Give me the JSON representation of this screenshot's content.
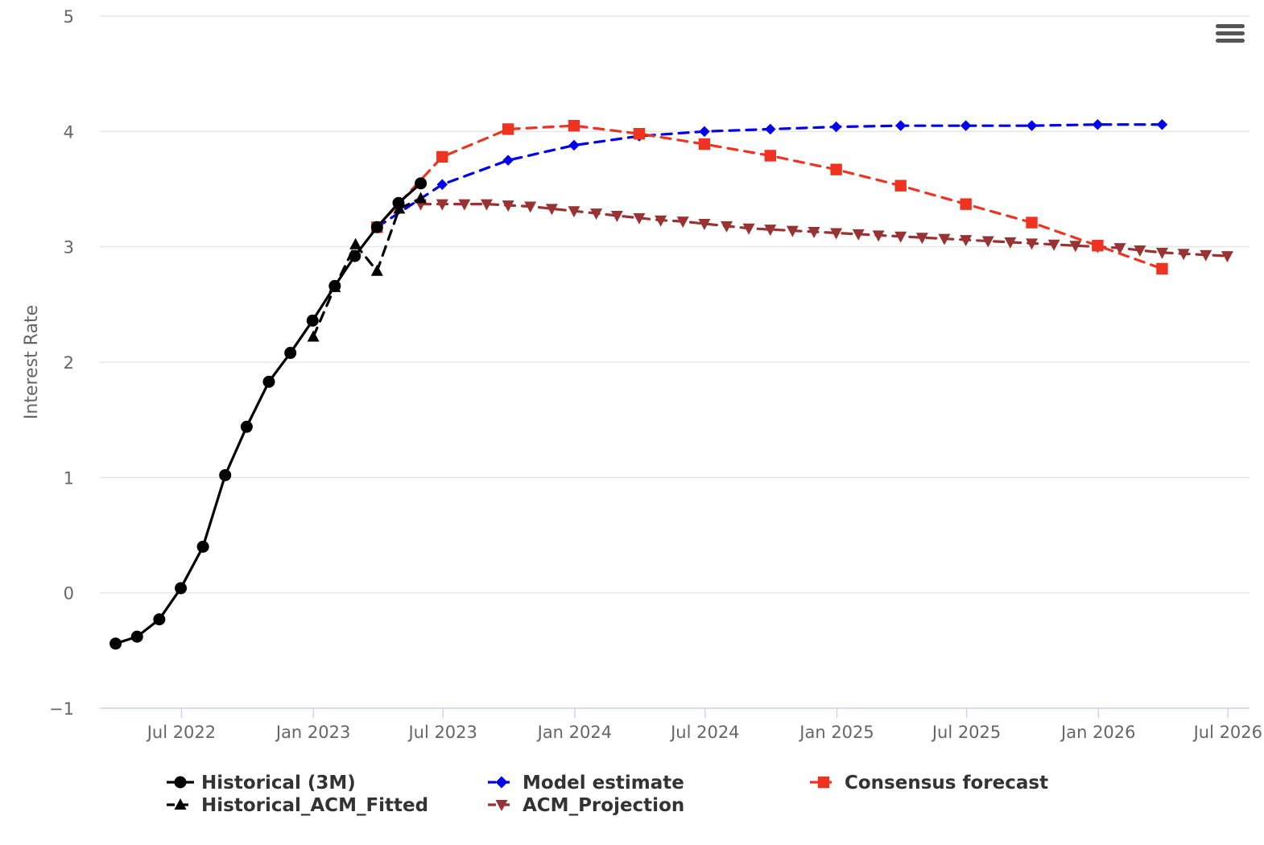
{
  "chart_data": {
    "type": "line",
    "title": "",
    "xlabel": "",
    "ylabel": "Interest Rate",
    "ylim": [
      -1,
      5
    ],
    "yticks": [
      -1,
      0,
      1,
      2,
      3,
      4,
      5
    ],
    "xlim": [
      "2022-03-09",
      "2026-07-31"
    ],
    "xticks": [
      {
        "date": "2022-07-01",
        "label": "Jul 2022"
      },
      {
        "date": "2023-01-01",
        "label": "Jan 2023"
      },
      {
        "date": "2023-07-01",
        "label": "Jul 2023"
      },
      {
        "date": "2024-01-01",
        "label": "Jan 2024"
      },
      {
        "date": "2024-07-01",
        "label": "Jul 2024"
      },
      {
        "date": "2025-01-01",
        "label": "Jan 2025"
      },
      {
        "date": "2025-07-01",
        "label": "Jul 2025"
      },
      {
        "date": "2026-01-01",
        "label": "Jan 2026"
      },
      {
        "date": "2026-07-01",
        "label": "Jul 2026"
      }
    ],
    "grid": true,
    "legend_position": "bottom",
    "series": [
      {
        "name": "Historical (3M)",
        "color": "#000000",
        "dash": "solid",
        "marker": "circle",
        "points": [
          {
            "x": "2022-03-31",
            "y": -0.44
          },
          {
            "x": "2022-04-30",
            "y": -0.38
          },
          {
            "x": "2022-05-31",
            "y": -0.23
          },
          {
            "x": "2022-06-30",
            "y": 0.04
          },
          {
            "x": "2022-07-31",
            "y": 0.4
          },
          {
            "x": "2022-08-31",
            "y": 1.02
          },
          {
            "x": "2022-09-30",
            "y": 1.44
          },
          {
            "x": "2022-10-31",
            "y": 1.83
          },
          {
            "x": "2022-11-30",
            "y": 2.08
          },
          {
            "x": "2022-12-31",
            "y": 2.36
          },
          {
            "x": "2023-01-31",
            "y": 2.66
          },
          {
            "x": "2023-02-28",
            "y": 2.92
          },
          {
            "x": "2023-03-31",
            "y": 3.17
          },
          {
            "x": "2023-04-30",
            "y": 3.38
          },
          {
            "x": "2023-05-31",
            "y": 3.55
          }
        ]
      },
      {
        "name": "Model estimate",
        "color": "#0000ee",
        "dash": "dashed",
        "marker": "diamond",
        "points": [
          {
            "x": "2023-03-31",
            "y": 3.17
          },
          {
            "x": "2023-06-30",
            "y": 3.54
          },
          {
            "x": "2023-09-30",
            "y": 3.75
          },
          {
            "x": "2023-12-31",
            "y": 3.88
          },
          {
            "x": "2024-03-31",
            "y": 3.96
          },
          {
            "x": "2024-06-30",
            "y": 4.0
          },
          {
            "x": "2024-09-30",
            "y": 4.02
          },
          {
            "x": "2024-12-31",
            "y": 4.04
          },
          {
            "x": "2025-03-31",
            "y": 4.05
          },
          {
            "x": "2025-06-30",
            "y": 4.05
          },
          {
            "x": "2025-09-30",
            "y": 4.05
          },
          {
            "x": "2025-12-31",
            "y": 4.06
          },
          {
            "x": "2026-03-31",
            "y": 4.06
          }
        ]
      },
      {
        "name": "Consensus forecast",
        "color": "#ee3322",
        "dash": "dashed",
        "marker": "square",
        "points": [
          {
            "x": "2023-03-31",
            "y": 3.17
          },
          {
            "x": "2023-06-30",
            "y": 3.78
          },
          {
            "x": "2023-09-30",
            "y": 4.02
          },
          {
            "x": "2023-12-31",
            "y": 4.05
          },
          {
            "x": "2024-03-31",
            "y": 3.98
          },
          {
            "x": "2024-06-30",
            "y": 3.89
          },
          {
            "x": "2024-09-30",
            "y": 3.79
          },
          {
            "x": "2024-12-31",
            "y": 3.67
          },
          {
            "x": "2025-03-31",
            "y": 3.53
          },
          {
            "x": "2025-06-30",
            "y": 3.37
          },
          {
            "x": "2025-09-30",
            "y": 3.21
          },
          {
            "x": "2025-12-31",
            "y": 3.01
          },
          {
            "x": "2026-03-31",
            "y": 2.81
          }
        ]
      },
      {
        "name": "Historical_ACM_Fitted",
        "color": "#000000",
        "dash": "dashed",
        "marker": "triangle-up",
        "points": [
          {
            "x": "2023-01-01",
            "y": 2.22
          },
          {
            "x": "2023-01-31",
            "y": 2.65
          },
          {
            "x": "2023-03-01",
            "y": 3.02
          },
          {
            "x": "2023-03-31",
            "y": 2.79
          },
          {
            "x": "2023-05-01",
            "y": 3.33
          },
          {
            "x": "2023-05-31",
            "y": 3.42
          }
        ]
      },
      {
        "name": "ACM_Projection",
        "color": "#993333",
        "dash": "dashed",
        "marker": "triangle-down",
        "points": [
          {
            "x": "2023-05-31",
            "y": 3.37
          },
          {
            "x": "2023-06-30",
            "y": 3.37
          },
          {
            "x": "2023-07-31",
            "y": 3.37
          },
          {
            "x": "2023-08-31",
            "y": 3.37
          },
          {
            "x": "2023-09-30",
            "y": 3.36
          },
          {
            "x": "2023-10-31",
            "y": 3.35
          },
          {
            "x": "2023-11-30",
            "y": 3.33
          },
          {
            "x": "2023-12-31",
            "y": 3.31
          },
          {
            "x": "2024-01-31",
            "y": 3.29
          },
          {
            "x": "2024-02-29",
            "y": 3.27
          },
          {
            "x": "2024-03-31",
            "y": 3.25
          },
          {
            "x": "2024-04-30",
            "y": 3.23
          },
          {
            "x": "2024-05-31",
            "y": 3.22
          },
          {
            "x": "2024-06-30",
            "y": 3.2
          },
          {
            "x": "2024-07-31",
            "y": 3.18
          },
          {
            "x": "2024-08-31",
            "y": 3.16
          },
          {
            "x": "2024-09-30",
            "y": 3.15
          },
          {
            "x": "2024-10-31",
            "y": 3.14
          },
          {
            "x": "2024-11-30",
            "y": 3.13
          },
          {
            "x": "2024-12-31",
            "y": 3.12
          },
          {
            "x": "2025-01-31",
            "y": 3.11
          },
          {
            "x": "2025-02-28",
            "y": 3.1
          },
          {
            "x": "2025-03-31",
            "y": 3.09
          },
          {
            "x": "2025-04-30",
            "y": 3.08
          },
          {
            "x": "2025-05-31",
            "y": 3.07
          },
          {
            "x": "2025-06-30",
            "y": 3.06
          },
          {
            "x": "2025-07-31",
            "y": 3.05
          },
          {
            "x": "2025-08-31",
            "y": 3.04
          },
          {
            "x": "2025-09-30",
            "y": 3.03
          },
          {
            "x": "2025-10-31",
            "y": 3.02
          },
          {
            "x": "2025-11-30",
            "y": 3.01
          },
          {
            "x": "2025-12-31",
            "y": 3.0
          },
          {
            "x": "2026-01-31",
            "y": 2.99
          },
          {
            "x": "2026-02-28",
            "y": 2.97
          },
          {
            "x": "2026-03-31",
            "y": 2.95
          },
          {
            "x": "2026-04-30",
            "y": 2.94
          },
          {
            "x": "2026-05-31",
            "y": 2.93
          },
          {
            "x": "2026-06-30",
            "y": 2.92
          }
        ]
      }
    ]
  },
  "legend": {
    "items": [
      {
        "label": "Historical (3M)"
      },
      {
        "label": "Model estimate"
      },
      {
        "label": "Consensus forecast"
      },
      {
        "label": "Historical_ACM_Fitted"
      },
      {
        "label": "ACM_Projection"
      }
    ]
  },
  "menu": {
    "icon": "hamburger-menu-icon"
  }
}
